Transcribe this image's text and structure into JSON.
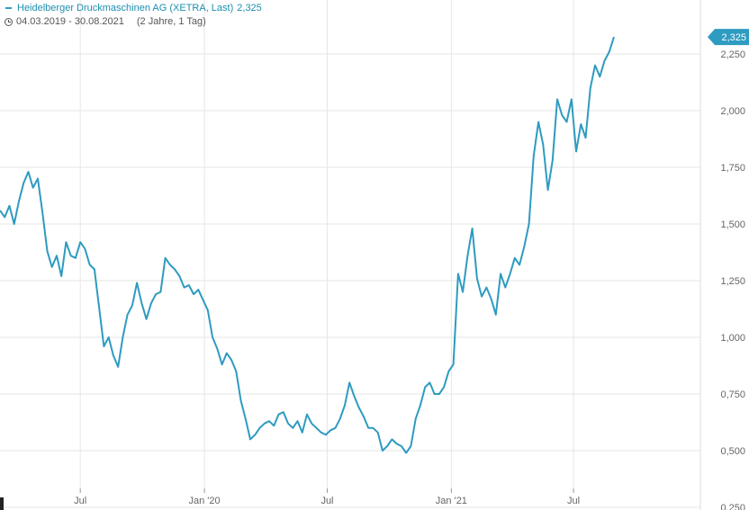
{
  "header": {
    "series_name": "Heidelberger Druckmaschinen AG (XETRA, Last)",
    "last_value": "2,325",
    "period": "04.03.2019 - 30.08.2021",
    "range_label": "(2 Jahre, 1 Tag)"
  },
  "colors": {
    "line": "#2e9bc0",
    "grid": "#e6e6e6",
    "axis_text": "#666666",
    "last_badge": "#2e9bc0"
  },
  "chart_data": {
    "type": "line",
    "title": "Heidelberger Druckmaschinen AG (XETRA, Last)",
    "xlabel": "",
    "ylabel": "",
    "x_range": [
      "2019-03-04",
      "2021-08-30"
    ],
    "ylim": [
      0.25,
      2.45
    ],
    "y_ticks": [
      0.25,
      0.5,
      0.75,
      1.0,
      1.25,
      1.5,
      1.75,
      2.0,
      2.25
    ],
    "y_tick_labels": [
      "0,250",
      "0,500",
      "0,750",
      "1,000",
      "1,250",
      "1,500",
      "1,750",
      "2,000",
      "2,250"
    ],
    "x_ticks": [
      {
        "label": "Jul",
        "date": "2019-07-01"
      },
      {
        "label": "Jan '20",
        "date": "2020-01-01"
      },
      {
        "label": "Jul",
        "date": "2020-07-01"
      },
      {
        "label": "Jan '21",
        "date": "2021-01-01"
      },
      {
        "label": "Jul",
        "date": "2021-07-01"
      }
    ],
    "grid": true,
    "last_label": "2,325",
    "series": [
      {
        "name": "Heidelberger Druckmaschinen AG (XETRA, Last)",
        "points": [
          [
            "2019-03-04",
            1.56
          ],
          [
            "2019-03-11",
            1.53
          ],
          [
            "2019-03-18",
            1.58
          ],
          [
            "2019-03-25",
            1.5
          ],
          [
            "2019-04-01",
            1.6
          ],
          [
            "2019-04-08",
            1.68
          ],
          [
            "2019-04-15",
            1.73
          ],
          [
            "2019-04-22",
            1.66
          ],
          [
            "2019-04-29",
            1.7
          ],
          [
            "2019-05-06",
            1.55
          ],
          [
            "2019-05-13",
            1.38
          ],
          [
            "2019-05-20",
            1.31
          ],
          [
            "2019-05-27",
            1.36
          ],
          [
            "2019-06-03",
            1.27
          ],
          [
            "2019-06-10",
            1.42
          ],
          [
            "2019-06-17",
            1.36
          ],
          [
            "2019-06-24",
            1.35
          ],
          [
            "2019-07-01",
            1.42
          ],
          [
            "2019-07-08",
            1.39
          ],
          [
            "2019-07-15",
            1.32
          ],
          [
            "2019-07-22",
            1.3
          ],
          [
            "2019-08-05",
            0.96
          ],
          [
            "2019-08-12",
            1.0
          ],
          [
            "2019-08-19",
            0.92
          ],
          [
            "2019-08-26",
            0.87
          ],
          [
            "2019-09-02",
            1.0
          ],
          [
            "2019-09-09",
            1.1
          ],
          [
            "2019-09-16",
            1.14
          ],
          [
            "2019-09-23",
            1.24
          ],
          [
            "2019-09-30",
            1.15
          ],
          [
            "2019-10-07",
            1.08
          ],
          [
            "2019-10-14",
            1.15
          ],
          [
            "2019-10-21",
            1.19
          ],
          [
            "2019-10-28",
            1.2
          ],
          [
            "2019-11-04",
            1.35
          ],
          [
            "2019-11-11",
            1.32
          ],
          [
            "2019-11-18",
            1.3
          ],
          [
            "2019-11-25",
            1.27
          ],
          [
            "2019-12-02",
            1.22
          ],
          [
            "2019-12-09",
            1.23
          ],
          [
            "2019-12-16",
            1.19
          ],
          [
            "2019-12-23",
            1.21
          ],
          [
            "2020-01-06",
            1.12
          ],
          [
            "2020-01-13",
            1.0
          ],
          [
            "2020-01-20",
            0.95
          ],
          [
            "2020-01-27",
            0.88
          ],
          [
            "2020-02-03",
            0.93
          ],
          [
            "2020-02-10",
            0.9
          ],
          [
            "2020-02-17",
            0.85
          ],
          [
            "2020-02-24",
            0.72
          ],
          [
            "2020-03-02",
            0.64
          ],
          [
            "2020-03-09",
            0.55
          ],
          [
            "2020-03-16",
            0.57
          ],
          [
            "2020-03-23",
            0.6
          ],
          [
            "2020-03-30",
            0.62
          ],
          [
            "2020-04-06",
            0.63
          ],
          [
            "2020-04-13",
            0.61
          ],
          [
            "2020-04-20",
            0.66
          ],
          [
            "2020-04-27",
            0.67
          ],
          [
            "2020-05-04",
            0.62
          ],
          [
            "2020-05-11",
            0.6
          ],
          [
            "2020-05-18",
            0.63
          ],
          [
            "2020-05-25",
            0.58
          ],
          [
            "2020-06-01",
            0.66
          ],
          [
            "2020-06-08",
            0.62
          ],
          [
            "2020-06-15",
            0.6
          ],
          [
            "2020-06-22",
            0.58
          ],
          [
            "2020-06-29",
            0.57
          ],
          [
            "2020-07-06",
            0.59
          ],
          [
            "2020-07-13",
            0.6
          ],
          [
            "2020-07-20",
            0.64
          ],
          [
            "2020-07-27",
            0.7
          ],
          [
            "2020-08-03",
            0.8
          ],
          [
            "2020-08-10",
            0.74
          ],
          [
            "2020-08-17",
            0.69
          ],
          [
            "2020-08-24",
            0.65
          ],
          [
            "2020-08-31",
            0.6
          ],
          [
            "2020-09-07",
            0.6
          ],
          [
            "2020-09-14",
            0.58
          ],
          [
            "2020-09-21",
            0.5
          ],
          [
            "2020-09-28",
            0.52
          ],
          [
            "2020-10-05",
            0.55
          ],
          [
            "2020-10-12",
            0.53
          ],
          [
            "2020-10-19",
            0.52
          ],
          [
            "2020-10-26",
            0.49
          ],
          [
            "2020-11-02",
            0.52
          ],
          [
            "2020-11-09",
            0.64
          ],
          [
            "2020-11-16",
            0.7
          ],
          [
            "2020-11-23",
            0.78
          ],
          [
            "2020-11-30",
            0.8
          ],
          [
            "2020-12-07",
            0.75
          ],
          [
            "2020-12-14",
            0.75
          ],
          [
            "2020-12-21",
            0.78
          ],
          [
            "2020-12-28",
            0.85
          ],
          [
            "2021-01-04",
            0.88
          ],
          [
            "2021-01-11",
            1.28
          ],
          [
            "2021-01-18",
            1.2
          ],
          [
            "2021-01-25",
            1.36
          ],
          [
            "2021-02-01",
            1.48
          ],
          [
            "2021-02-08",
            1.26
          ],
          [
            "2021-02-15",
            1.18
          ],
          [
            "2021-02-22",
            1.22
          ],
          [
            "2021-03-01",
            1.17
          ],
          [
            "2021-03-08",
            1.1
          ],
          [
            "2021-03-15",
            1.28
          ],
          [
            "2021-03-22",
            1.22
          ],
          [
            "2021-03-29",
            1.28
          ],
          [
            "2021-04-05",
            1.35
          ],
          [
            "2021-04-12",
            1.32
          ],
          [
            "2021-04-19",
            1.4
          ],
          [
            "2021-04-26",
            1.5
          ],
          [
            "2021-05-03",
            1.8
          ],
          [
            "2021-05-10",
            1.95
          ],
          [
            "2021-05-17",
            1.85
          ],
          [
            "2021-05-24",
            1.65
          ],
          [
            "2021-05-31",
            1.78
          ],
          [
            "2021-06-07",
            2.05
          ],
          [
            "2021-06-14",
            1.98
          ],
          [
            "2021-06-21",
            1.95
          ],
          [
            "2021-06-28",
            2.05
          ],
          [
            "2021-07-05",
            1.82
          ],
          [
            "2021-07-12",
            1.94
          ],
          [
            "2021-07-19",
            1.88
          ],
          [
            "2021-07-26",
            2.1
          ],
          [
            "2021-08-02",
            2.2
          ],
          [
            "2021-08-09",
            2.15
          ],
          [
            "2021-08-16",
            2.22
          ],
          [
            "2021-08-23",
            2.26
          ],
          [
            "2021-08-30",
            2.325
          ]
        ]
      }
    ]
  }
}
